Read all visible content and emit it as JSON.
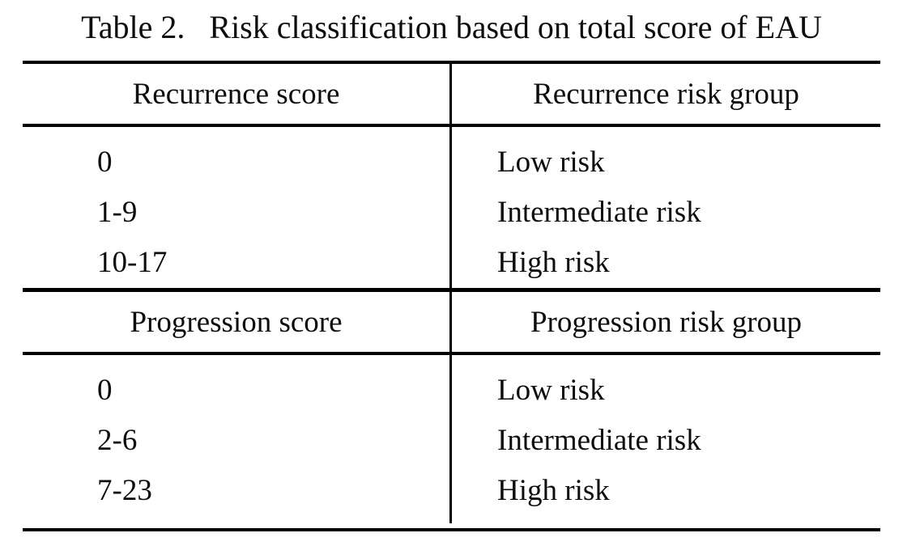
{
  "page": {
    "background": "#ffffff",
    "text_color": "#0d0d0d",
    "rule_color": "#000000"
  },
  "title": {
    "label": "Table 2.",
    "text": "Risk classification based on total score of EAU"
  },
  "table": {
    "sections": [
      {
        "header": {
          "score": "Recurrence score",
          "group": "Recurrence risk group"
        },
        "rows": [
          {
            "score": "0",
            "group": "Low risk"
          },
          {
            "score": "1-9",
            "group": "Intermediate risk"
          },
          {
            "score": "10-17",
            "group": "High risk"
          }
        ]
      },
      {
        "header": {
          "score": "Progression score",
          "group": "Progression risk group"
        },
        "rows": [
          {
            "score": "0",
            "group": "Low risk"
          },
          {
            "score": "2-6",
            "group": "Intermediate risk"
          },
          {
            "score": "7-23",
            "group": "High risk"
          }
        ]
      }
    ]
  }
}
